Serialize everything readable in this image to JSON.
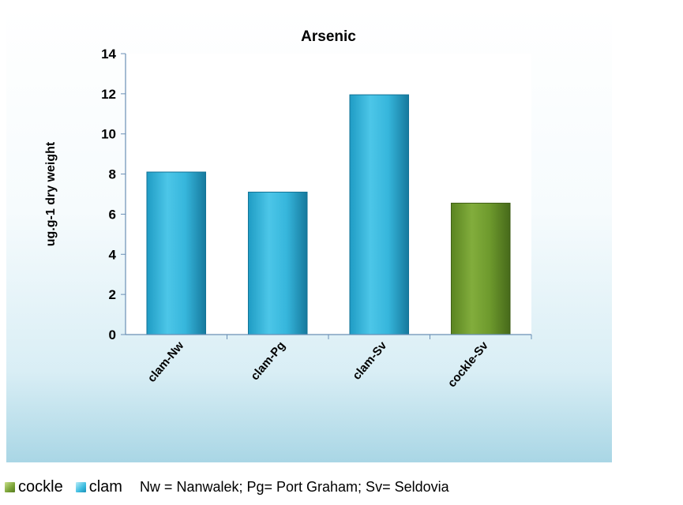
{
  "chart_data": {
    "type": "bar",
    "title": "Arsenic",
    "xlabel": "",
    "ylabel": "ug.g-1 dry weight",
    "ylim": [
      0,
      14
    ],
    "yticks": [
      0,
      2,
      4,
      6,
      8,
      10,
      12,
      14
    ],
    "grid": false,
    "categories": [
      "clam-Nw",
      "clam-Pg",
      "clam-Sv",
      "cockle-Sv"
    ],
    "values": [
      8.1,
      7.1,
      11.95,
      6.55
    ],
    "bar_groups": [
      "clam",
      "clam",
      "clam",
      "cockle"
    ],
    "colors": {
      "clam": "#2fb4d9",
      "cockle": "#6f9a2c"
    },
    "legend": [
      {
        "group": "cockle",
        "label": "cockle"
      },
      {
        "group": "clam",
        "label": "clam"
      }
    ],
    "legend_placement": "bottom"
  },
  "footnote": "Nw = Nanwalek;  Pg= Port Graham;  Sv= Seldovia"
}
